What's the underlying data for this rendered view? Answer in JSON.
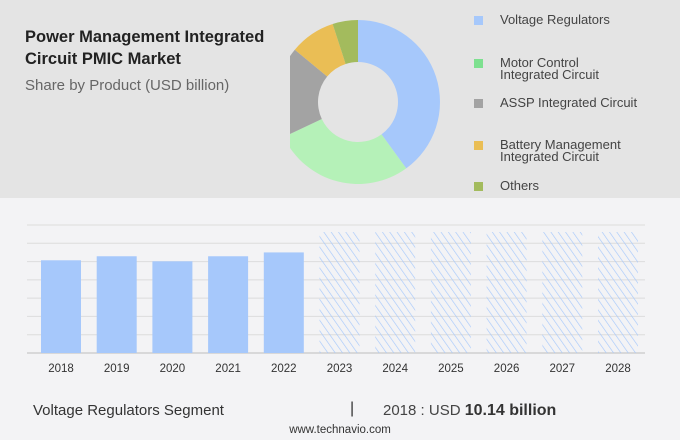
{
  "title": "Power Management Integrated Circuit PMIC Market",
  "subtitle": "Share by Product (USD billion)",
  "chart_data": [
    {
      "type": "pie",
      "subtype": "donut",
      "categories": [
        "Voltage Regulators",
        "Motor Control Integrated Circuit",
        "ASSP Integrated Circuit",
        "Battery Management Integrated Circuit",
        "Others"
      ],
      "values": [
        40,
        28,
        18,
        9,
        5
      ],
      "colors": [
        "#a6c8fb",
        "#b5f1b8",
        "#a3a3a3",
        "#eabe55",
        "#a3bb5d"
      ],
      "legend_colors": [
        "#a6c8fb",
        "#7de08f",
        "#a3a3a3",
        "#eabe55",
        "#a3bb5d"
      ],
      "legend_position": "right"
    },
    {
      "type": "bar",
      "categories": [
        "2018",
        "2019",
        "2020",
        "2021",
        "2022",
        "2023",
        "2024",
        "2025",
        "2026",
        "2027",
        "2028"
      ],
      "values": [
        10.14,
        10.58,
        10.03,
        10.58,
        11.0,
        null,
        null,
        null,
        null,
        null,
        null
      ],
      "forecast_hatched": [
        "2023",
        "2024",
        "2025",
        "2026",
        "2027",
        "2028"
      ],
      "ylim": [
        0,
        14
      ],
      "grid": true,
      "bar_color": "#a6c8fb"
    }
  ],
  "footer": {
    "segment": "Voltage Regulators Segment",
    "separator": "|",
    "year_label": "2018 : USD ",
    "value": "10.14 billion",
    "site": "www.technavio.com"
  }
}
